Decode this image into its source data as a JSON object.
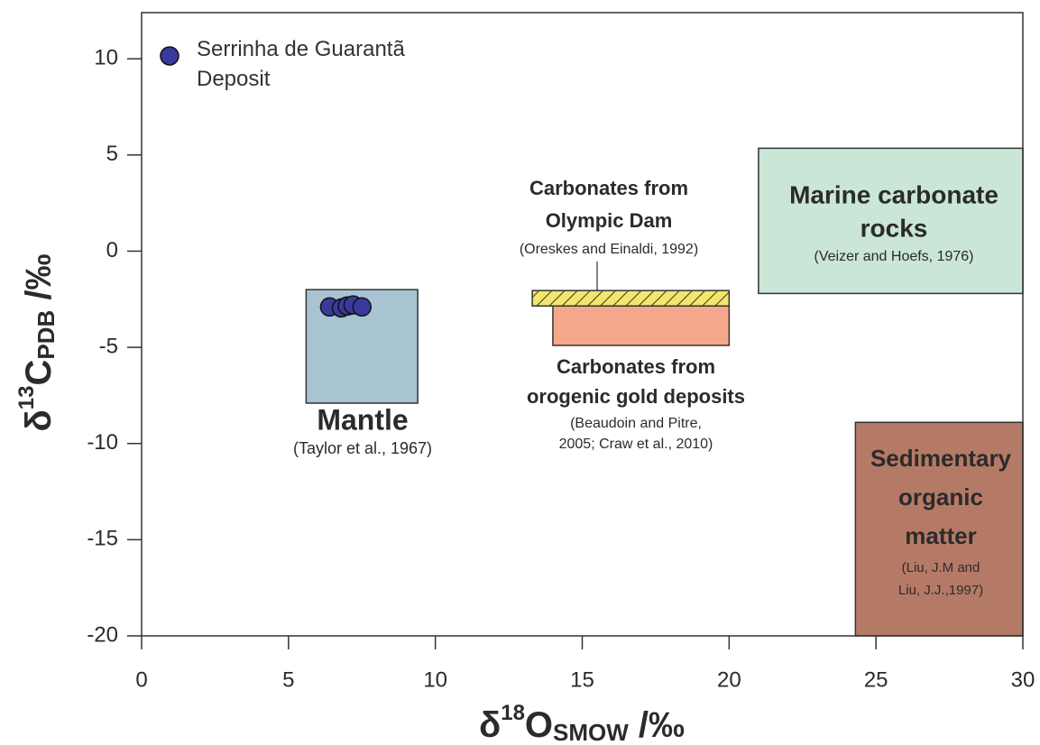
{
  "chart_data": {
    "type": "scatter",
    "x_label": [
      "δ",
      "18",
      "O",
      "SMOW",
      " /‰"
    ],
    "y_label": [
      "δ",
      "13",
      "C",
      "PDB",
      " /‰"
    ],
    "xlim": [
      0,
      30
    ],
    "ylim": [
      -20,
      12.4
    ],
    "xticks": [
      0,
      5,
      10,
      15,
      20,
      25,
      30
    ],
    "yticks": [
      -20,
      -15,
      -10,
      -5,
      0,
      5,
      10
    ],
    "series": [
      {
        "name": "Serrinha de Guarantã Deposit",
        "color": "#3a3a9c",
        "x": [
          6.4,
          6.8,
          7.0,
          7.2,
          7.5
        ],
        "y": [
          -2.9,
          -2.95,
          -2.85,
          -2.8,
          -2.9
        ]
      }
    ],
    "regions": [
      {
        "name_lines": [
          "Mantle"
        ],
        "citation_lines": [
          "(Taylor et al., 1967)"
        ],
        "x": [
          5.6,
          9.4
        ],
        "y": [
          -7.9,
          -2.0
        ],
        "color": "#a8c4d2"
      },
      {
        "name_lines": [
          "Carbonates from",
          "Olympic Dam"
        ],
        "citation_lines": [
          "(Oreskes and Einaldi, 1992)"
        ],
        "x": [
          13.3,
          20.0
        ],
        "y": [
          -2.85,
          -2.05
        ],
        "color": "#f5e66b",
        "hatch": true
      },
      {
        "name_lines": [
          "Carbonates from",
          "orogenic gold deposits"
        ],
        "citation_lines": [
          "(Beaudoin and Pitre,",
          "2005; Craw et al., 2010)"
        ],
        "x": [
          14.0,
          20.0
        ],
        "y": [
          -4.9,
          -2.85
        ],
        "color": "#f4a78a"
      },
      {
        "name_lines": [
          "Marine carbonate",
          "rocks"
        ],
        "citation_lines": [
          "(Veizer and Hoefs, 1976)"
        ],
        "x": [
          21.0,
          30.0
        ],
        "y": [
          -2.2,
          5.35
        ],
        "color": "#c9e6d6"
      },
      {
        "name_lines": [
          "Sedimentary",
          "organic",
          "matter"
        ],
        "citation_lines": [
          "(Liu, J.M and",
          "Liu, J.J.,1997)"
        ],
        "x": [
          24.3,
          30.0
        ],
        "y": [
          -20,
          -8.9
        ],
        "color": "#b57a66"
      }
    ]
  }
}
